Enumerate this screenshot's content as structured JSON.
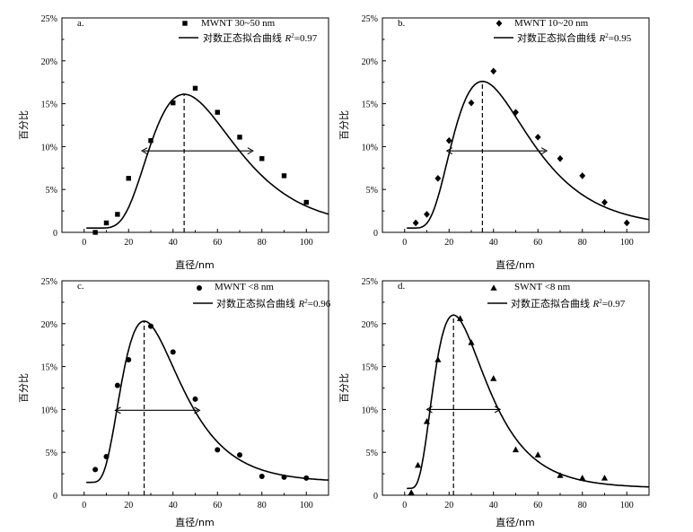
{
  "chart_data": [
    {
      "type": "scatter",
      "panel_label": "a.",
      "title": "",
      "xlabel": "直径/nm",
      "ylabel": "百分比",
      "xlim": [
        -10,
        110
      ],
      "ylim": [
        0,
        25
      ],
      "xticks": [
        "0",
        "20",
        "40",
        "60",
        "80",
        "100"
      ],
      "yticks": [
        "0",
        "5%",
        "10%",
        "15%",
        "20%",
        "25%"
      ],
      "marker": "square",
      "legend": {
        "marker_label": "MWNT 30~50 nm",
        "fit_label_prefix": "对数正态拟合曲线 ",
        "r2_symbol": "R",
        "r2_sup": "2",
        "r2_value": "=0.97"
      },
      "series": [
        {
          "name": "MWNT 30~50 nm",
          "x": [
            5,
            10,
            15,
            20,
            30,
            40,
            50,
            60,
            70,
            80,
            90,
            100
          ],
          "y": [
            0.0,
            1.1,
            2.1,
            6.3,
            10.7,
            15.1,
            16.8,
            14.0,
            11.1,
            8.6,
            6.6,
            3.5
          ]
        }
      ],
      "fit": {
        "mode": 45,
        "peak": 16.1,
        "sigma": 0.42,
        "base": 0.5
      },
      "mode_line_x": 45,
      "fwhm_arrow": {
        "x1": 26,
        "x2": 76,
        "y": 9.5
      }
    },
    {
      "type": "scatter",
      "panel_label": "b.",
      "title": "",
      "xlabel": "直径/nm",
      "ylabel": "百分比",
      "xlim": [
        -10,
        110
      ],
      "ylim": [
        0,
        25
      ],
      "xticks": [
        "0",
        "20",
        "40",
        "60",
        "80",
        "100"
      ],
      "yticks": [
        "0",
        "5%",
        "10%",
        "15%",
        "20%",
        "25%"
      ],
      "marker": "diamond",
      "legend": {
        "marker_label": "MWNT 10~20 nm",
        "fit_label_prefix": "对数正态拟合曲线 ",
        "r2_symbol": "R",
        "r2_sup": "2",
        "r2_value": "=0.95"
      },
      "series": [
        {
          "name": "MWNT 10~20 nm",
          "x": [
            5,
            10,
            15,
            20,
            30,
            40,
            50,
            60,
            70,
            80,
            90,
            100
          ],
          "y": [
            1.1,
            2.1,
            6.3,
            10.7,
            15.1,
            18.8,
            14.0,
            11.1,
            8.6,
            6.6,
            3.5,
            1.1
          ]
        }
      ],
      "fit": {
        "mode": 35,
        "peak": 17.6,
        "sigma": 0.48,
        "base": 0.5
      },
      "mode_line_x": 35,
      "fwhm_arrow": {
        "x1": 19,
        "x2": 64,
        "y": 9.5
      }
    },
    {
      "type": "scatter",
      "panel_label": "c.",
      "title": "",
      "xlabel": "直径/nm",
      "ylabel": "百分比",
      "xlim": [
        -10,
        110
      ],
      "ylim": [
        0,
        25
      ],
      "xticks": [
        "0",
        "20",
        "40",
        "60",
        "80",
        "100"
      ],
      "yticks": [
        "0",
        "5%",
        "10%",
        "15%",
        "20%",
        "25%"
      ],
      "marker": "circle",
      "legend": {
        "marker_label": "MWNT <8 nm",
        "fit_label_prefix": "对数正态拟合曲线 ",
        "r2_symbol": "R",
        "r2_sup": "2",
        "r2_value": "=0.96"
      },
      "series": [
        {
          "name": "MWNT <8 nm",
          "x": [
            5,
            10,
            15,
            20,
            30,
            40,
            50,
            60,
            70,
            80,
            90,
            100
          ],
          "y": [
            3.0,
            4.5,
            12.8,
            15.8,
            19.7,
            16.7,
            11.2,
            5.3,
            4.7,
            2.2,
            2.1,
            2.0
          ]
        }
      ],
      "fit": {
        "mode": 27,
        "peak": 20.3,
        "sigma": 0.48,
        "base": 1.5
      },
      "mode_line_x": 27,
      "fwhm_arrow": {
        "x1": 14,
        "x2": 52,
        "y": 9.9
      }
    },
    {
      "type": "scatter",
      "panel_label": "d.",
      "title": "",
      "xlabel": "直径/nm",
      "ylabel": "百分比",
      "xlim": [
        -10,
        110
      ],
      "ylim": [
        0,
        25
      ],
      "xticks": [
        "0",
        "20",
        "40",
        "60",
        "80",
        "100"
      ],
      "yticks": [
        "0",
        "5%",
        "10%",
        "15%",
        "20%",
        "25%"
      ],
      "marker": "triangle",
      "legend": {
        "marker_label": "SWNT <8 nm",
        "fit_label_prefix": "对数正态拟合曲线 ",
        "r2_symbol": "R",
        "r2_sup": "2",
        "r2_value": "=0.97"
      },
      "series": [
        {
          "name": "SWNT <8 nm",
          "x": [
            3,
            6,
            10,
            15,
            25,
            30,
            40,
            50,
            60,
            70,
            80,
            90
          ],
          "y": [
            0.3,
            3.5,
            8.6,
            15.8,
            20.6,
            17.8,
            13.6,
            5.3,
            4.7,
            2.3,
            2.0,
            2.0
          ]
        }
      ],
      "fit": {
        "mode": 22,
        "peak": 21.0,
        "sigma": 0.52,
        "base": 0.8
      },
      "mode_line_x": 22,
      "fwhm_arrow": {
        "x1": 10,
        "x2": 43,
        "y": 10.0
      }
    }
  ]
}
